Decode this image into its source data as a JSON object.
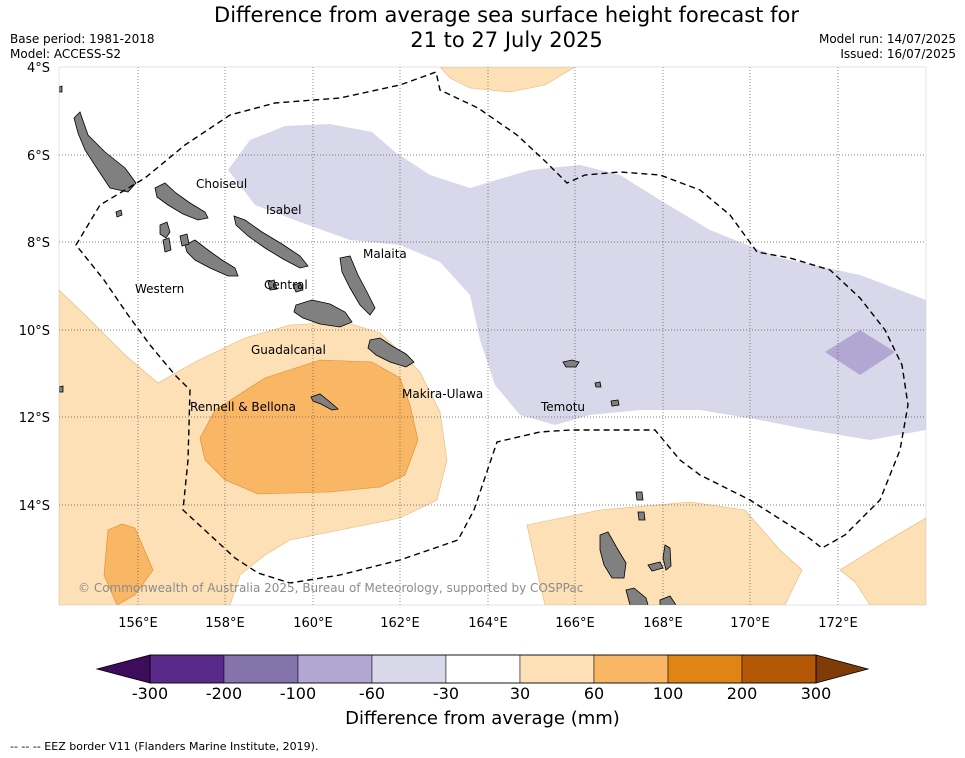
{
  "header": {
    "title_line1": "Difference from average sea surface height forecast for",
    "title_line2": "21 to 27 July 2025",
    "base_period": "Base period: 1981-2018",
    "model": "Model: ACCESS-S2",
    "model_run": "Model run: 14/07/2025",
    "issued": "Issued: 16/07/2025"
  },
  "map": {
    "lat_labels": [
      "4°S",
      "6°S",
      "8°S",
      "10°S",
      "12°S",
      "14°S"
    ],
    "lon_labels": [
      "156°E",
      "158°E",
      "160°E",
      "162°E",
      "164°E",
      "166°E",
      "168°E",
      "170°E",
      "172°E"
    ],
    "regions": [
      "Choiseul",
      "Isabel",
      "Malaita",
      "Western",
      "Central",
      "Guadalcanal",
      "Makira-Ulawa",
      "Rennell & Bellona",
      "Temotu"
    ],
    "copyright": "© Commonwealth of Australia 2025, Bureau of Meteorology, supported by COSPPac",
    "land_color": "#808080",
    "ocean_color": "#ffffff"
  },
  "colorbar": {
    "title": "Difference from average (mm)",
    "ticks": [
      "-300",
      "-200",
      "-100",
      "-60",
      "-30",
      "30",
      "60",
      "100",
      "200",
      "300"
    ],
    "colors": [
      "#3d0d5c",
      "#5a2a8a",
      "#8573ac",
      "#b1a7d2",
      "#d8d8ea",
      "#ffffff",
      "#fde0b6",
      "#f9b664",
      "#e08414",
      "#b35806",
      "#7f3b08"
    ]
  },
  "footer": {
    "legend": "--  --  -- EEZ border V11 (Flanders Marine Institute, 2019)."
  }
}
